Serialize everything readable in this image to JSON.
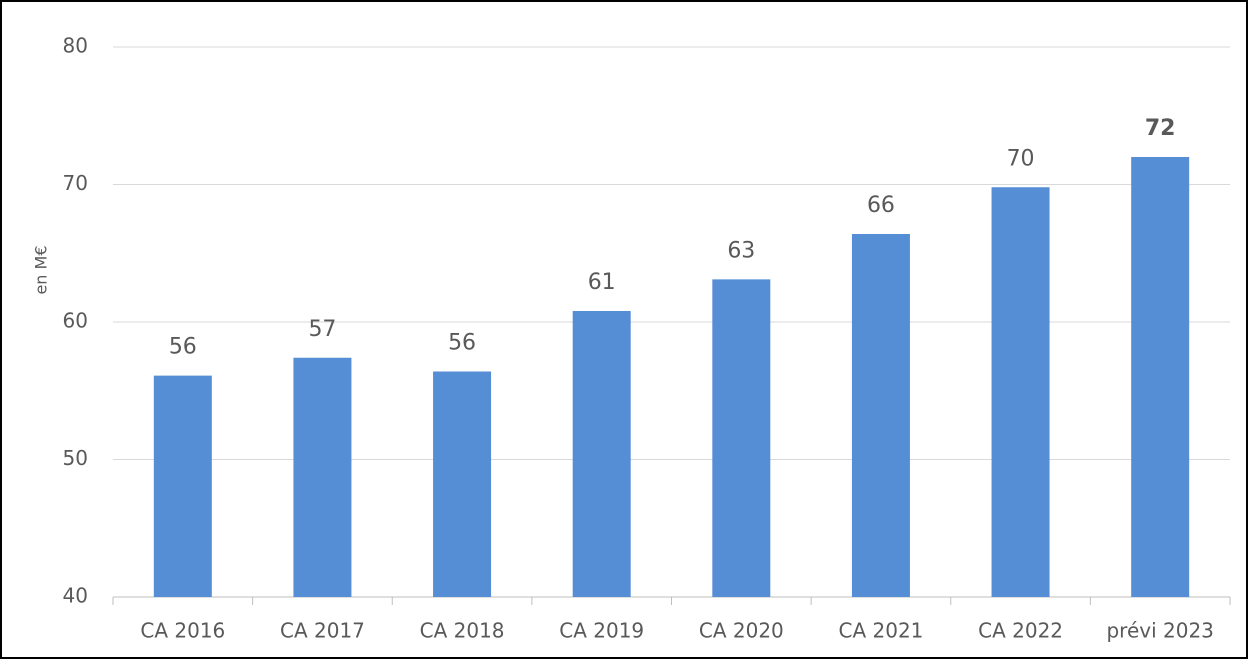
{
  "chart_data": {
    "type": "bar",
    "y_label": "en M€",
    "categories": [
      "CA 2016",
      "CA 2017",
      "CA 2018",
      "CA 2019",
      "CA 2020",
      "CA 2021",
      "CA 2022",
      "prévi 2023"
    ],
    "values": [
      56.1,
      57.4,
      56.4,
      60.8,
      63.1,
      66.4,
      69.8,
      72
    ],
    "value_labels": [
      "56",
      "57",
      "56",
      "61",
      "63",
      "66",
      "70",
      "72"
    ],
    "color": "#558ed5",
    "ylim": [
      40,
      80
    ],
    "yticks": [
      40,
      50,
      60,
      70,
      80
    ],
    "grid": true
  }
}
